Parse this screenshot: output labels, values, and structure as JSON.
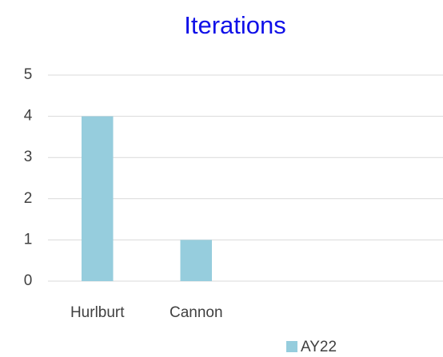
{
  "chart_data": {
    "type": "bar",
    "title": "Iterations",
    "categories": [
      "Hurlburt",
      "Cannon",
      null,
      null
    ],
    "series": [
      {
        "name": "AY22",
        "color": "#96cddd",
        "values": [
          4,
          1,
          null,
          null
        ]
      }
    ],
    "ylim": [
      0,
      5
    ],
    "yticks": [
      0,
      1,
      2,
      3,
      4,
      5
    ],
    "grid": true,
    "legend": "bottom"
  }
}
